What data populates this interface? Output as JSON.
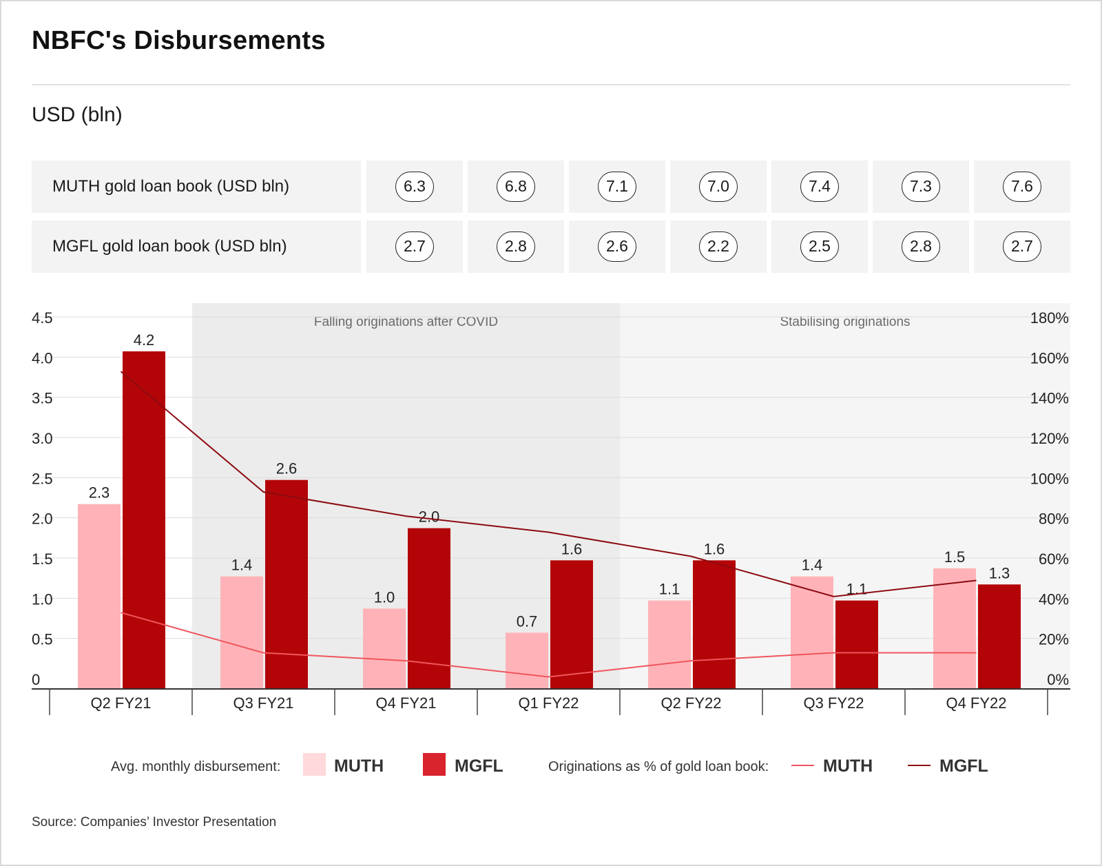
{
  "title": "NBFC's Disbursements",
  "unit_label": "USD (bln)",
  "table": {
    "rows": [
      {
        "label": "MUTH gold loan book (USD bln)",
        "values": [
          "6.3",
          "6.8",
          "7.1",
          "7.0",
          "7.4",
          "7.3",
          "7.6"
        ]
      },
      {
        "label": "MGFL gold loan book (USD bln)",
        "values": [
          "2.7",
          "2.8",
          "2.6",
          "2.2",
          "2.5",
          "2.8",
          "2.7"
        ]
      }
    ]
  },
  "colors": {
    "muth_bar": "#ffb3b8",
    "mgfl_bar": "#b30508",
    "muth_line": "#f0555d",
    "mgfl_line": "#8c0a10",
    "shade_falling": "#ececec",
    "shade_stabilising": "#f5f5f5",
    "grid": "#dcdcdc",
    "legend_muth_swatch": "#ffd9dc",
    "legend_mgfl_swatch": "#d9232d"
  },
  "chart_data": {
    "type": "bar",
    "categories": [
      "Q2 FY21",
      "Q3 FY21",
      "Q4 FY21",
      "Q1 FY22",
      "Q2 FY22",
      "Q3 FY22",
      "Q4 FY22"
    ],
    "series": [
      {
        "name": "MUTH",
        "kind": "bar",
        "axis": "left",
        "values": [
          2.3,
          1.4,
          1.0,
          0.7,
          1.1,
          1.4,
          1.5
        ],
        "labels": [
          "2.3",
          "1.4",
          "1.0",
          "0.7",
          "1.1",
          "1.4",
          "1.5"
        ]
      },
      {
        "name": "MGFL",
        "kind": "bar",
        "axis": "left",
        "values": [
          4.2,
          2.6,
          2.0,
          1.6,
          1.6,
          1.1,
          1.3
        ],
        "labels": [
          "4.2",
          "2.6",
          "2.0",
          "1.6",
          "1.6",
          "1.1",
          "1.3"
        ]
      },
      {
        "name": "MUTH",
        "kind": "line",
        "axis": "right",
        "values": [
          38,
          18,
          14,
          6,
          14,
          18,
          18
        ]
      },
      {
        "name": "MGFL",
        "kind": "line",
        "axis": "right",
        "values": [
          158,
          98,
          86,
          78,
          66,
          46,
          54
        ]
      }
    ],
    "ylim_left": [
      0,
      4.5
    ],
    "ylim_right": [
      0,
      180
    ],
    "yticks_left": [
      "0",
      "0.5",
      "1.0",
      "1.5",
      "2.0",
      "2.5",
      "3.0",
      "3.5",
      "4.0",
      "4.5"
    ],
    "yticks_right": [
      "0%",
      "20%",
      "40%",
      "60%",
      "80%",
      "100%",
      "120%",
      "140%",
      "160%",
      "180%"
    ],
    "grid": true,
    "annotations": [
      {
        "text": "Falling originations after COVID",
        "from_category": 1,
        "to_category": 3
      },
      {
        "text": "Stabilising originations",
        "from_category": 4,
        "to_category": 6
      }
    ]
  },
  "legend": {
    "bars_title": "Avg. monthly disbursement:",
    "lines_title": "Originations as % of gold loan book:",
    "muth": "MUTH",
    "mgfl": "MGFL"
  },
  "source": "Source: Companies’ Investor Presentation"
}
